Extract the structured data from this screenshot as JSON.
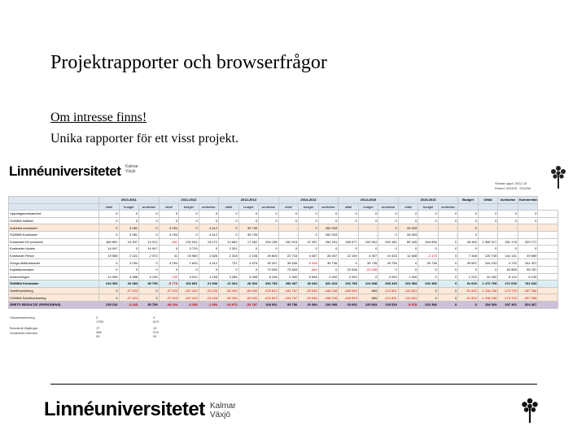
{
  "slide": {
    "title": "Projektrapporter och browserfrågor",
    "line1": "Om intresse finns!",
    "line2": "Unika rapporter för ett visst projekt."
  },
  "brand": {
    "name": "Linnéuniversitetet",
    "sub1": "Kalmar",
    "sub2": "Växjö",
    "tree_icon": "tree-logo-icon"
  },
  "report": {
    "meta1": "Senast uppd: 2012-10",
    "meta2": "Period: 201109 - 201208",
    "groups": [
      "2010-2011",
      "2011-2012",
      "2012-2013",
      "2013-2014",
      "2014-2015",
      "2015-2016",
      "Budget",
      "Utfall",
      "Avvikelse",
      "Kommentar"
    ],
    "subheaders": [
      "utfall",
      "budget",
      "avvikelse"
    ],
    "rows": [
      {
        "label": "Uppdragsverksamhet",
        "style": "",
        "cells": [
          "0",
          "0",
          "0",
          "0",
          "0",
          "0",
          "0",
          "0",
          "0",
          "0",
          "0",
          "0",
          "0",
          "0",
          "0",
          "0",
          "0",
          "0",
          "0",
          "0",
          "0",
          "0",
          ""
        ]
      },
      {
        "label": "SUMMA Intäkter",
        "style": "",
        "cells": [
          "0",
          "0",
          "0",
          "0",
          "0",
          "0",
          "0",
          "0",
          "0",
          "0",
          "0",
          "0",
          "0",
          "0",
          "0",
          "0",
          "0",
          "0",
          "0",
          "0",
          "0",
          "0",
          ""
        ]
      },
      {
        "label": "Indirekta kostnader",
        "style": "hi",
        "cells": [
          "0",
          "3 281",
          "0",
          "3 294",
          "0",
          "4 412",
          "0",
          "39 735",
          "-",
          "-",
          "0",
          "262 933",
          "-",
          "-",
          "0",
          "28 933",
          "-",
          "-",
          "0",
          "-",
          "-",
          "-",
          ""
        ]
      },
      {
        "label": "SUMMA Kostnader",
        "style": "",
        "cells": [
          "0",
          "3 281",
          "0",
          "3 294",
          "0",
          "4 412",
          "0",
          "39 735",
          "-",
          "-",
          "0",
          "262 933",
          "-",
          "-",
          "0",
          "28 933",
          "-",
          "-",
          "0",
          "-",
          "-",
          "-",
          ""
        ]
      },
      {
        "label": "Kostnader för personal",
        "style": "",
        "cells": [
          "184 892",
          "14 307",
          "14 312",
          "-301",
          "132 024",
          "13 472",
          "12 682",
          "17 262",
          "254 138",
          "151 913",
          "47 287",
          "254 181",
          "156 677",
          "102 904",
          "254 181",
          "89 345",
          "164 836",
          "0",
          "43 462",
          "1 065 917",
          "261 178",
          "429 717",
          ""
        ]
      },
      {
        "label": "Kostnader lokaler",
        "style": "",
        "cells": [
          "14 947",
          "0",
          "14 947",
          "0",
          "3 729",
          "0",
          "2 301",
          "0",
          "0",
          "0",
          "0",
          "0",
          "0",
          "0",
          "0",
          "0",
          "0",
          "0",
          "0",
          "0",
          "0",
          "0",
          ""
        ]
      },
      {
        "label": "Kostnader Resor",
        "style": "",
        "cells": [
          "19 555",
          "2 421",
          "2 372",
          "41",
          "20 983",
          "2 826",
          "2 318",
          "2 108",
          "26 803",
          "22 716",
          "4 087",
          "26 407",
          "22 100",
          "4 307",
          "10 433",
          "12 608",
          "-2 175",
          "0",
          "7 348",
          "120 745",
          "144 141",
          "49 689",
          ""
        ]
      },
      {
        "label": "Övriga driftkostnader",
        "style": "",
        "cells": [
          "0",
          "3 294",
          "0",
          "3 294",
          "1 603",
          "4 412",
          "737",
          "3 675",
          "30 307",
          "39 635",
          "-9 328",
          "39 735",
          "0",
          "39 735",
          "39 735",
          "0",
          "39 735",
          "0",
          "39 597",
          "244 103",
          "4 732",
          "241 307",
          ""
        ]
      },
      {
        "label": "Kapitalkostnader",
        "style": "",
        "cells": [
          "0",
          "0",
          "0",
          "0",
          "0",
          "0",
          "0",
          "0",
          "73 339",
          "73 803",
          "-464",
          "0",
          "22 008",
          "-22 008",
          "0",
          "0",
          "0",
          "0",
          "0",
          "0",
          "52 855",
          "55 787",
          ""
        ]
      },
      {
        "label": "Avskrivningar",
        "style": "",
        "cells": [
          "14 999",
          "3 388",
          "4 128",
          "-740",
          "4 512",
          "1 226",
          "3 286",
          "3 258",
          "8 248",
          "2 400",
          "5 848",
          "2 000",
          "2 000",
          "0",
          "2 000",
          "2 000",
          "0",
          "0",
          "1 222",
          "42 000",
          "8 124",
          "5 133",
          ""
        ]
      },
      {
        "label": "SUMMA Kostnader",
        "style": "sub",
        "cells": [
          "234 393",
          "26 983",
          "35 759",
          "-8 776",
          "162 851",
          "21 936",
          "21 324",
          "28 303",
          "392 735",
          "290 467",
          "49 430",
          "322 323",
          "202 785",
          "124 938",
          "306 349",
          "103 953",
          "202 396",
          "0",
          "91 629",
          "1 472 765",
          "471 030",
          "781 633",
          ""
        ]
      },
      {
        "label": "Samfinansiering",
        "style": "hi",
        "cells": [
          "0",
          "-27 923",
          "0",
          "-27 923",
          "-167 423",
          "-23 426",
          "-82 296",
          "-83 090",
          "-223 813",
          "-194 767",
          "-29 046",
          "-168 228",
          "-169 093",
          "865",
          "-112 831",
          "-112 831",
          "0",
          "0",
          "-91 823",
          "-1 318 236",
          "-173 729",
          "-257 266",
          ""
        ]
      },
      {
        "label": "SUMMA Samfinansiering",
        "style": "hi",
        "cells": [
          "0",
          "-27 923",
          "0",
          "-27 923",
          "-167 423",
          "-23 426",
          "-82 296",
          "-83 090",
          "-223 813",
          "-194 767",
          "-29 046",
          "-168 228",
          "-169 093",
          "865",
          "-112 831",
          "-112 831",
          "0",
          "0",
          "-91 823",
          "-1 318 236",
          "-173 729",
          "-257 266",
          ""
        ]
      },
      {
        "label": "ÅRETS RESULTAT (PERIODENS)",
        "style": "tot",
        "cells": [
          "235 216",
          "-4 445",
          "35 759",
          "-40 204",
          "-5 395",
          "-1 490",
          "-60 972",
          "-54 787",
          "168 922",
          "95 700",
          "20 384",
          "154 095",
          "33 692",
          "125 803",
          "193 518",
          "-8 878",
          "202 396",
          "0",
          "0",
          "154 529",
          "297 301",
          "524 367",
          ""
        ]
      }
    ],
    "foot": [
      {
        "label": "Värdeavskrivning",
        "v1": "2 1763",
        "v2": "3 613"
      },
      {
        "label": "Bokvärde tillgångar",
        "v1": "17 386 06",
        "v2": "12 013 00"
      },
      {
        "label": "Godkända bonusar",
        "v1": "",
        "v2": ""
      }
    ]
  }
}
